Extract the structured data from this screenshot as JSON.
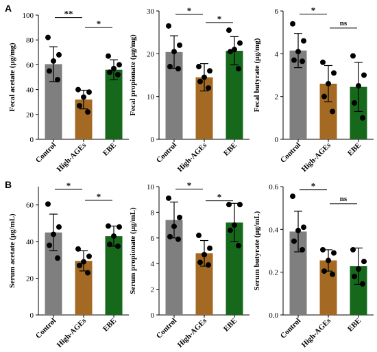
{
  "panel_labels": [
    "A",
    "B"
  ],
  "chart_data": [
    {
      "type": "bar",
      "panel": "A",
      "categories": [
        "Control",
        "High-AGEs",
        "EBE"
      ],
      "ylabel": "Fecal acetate (µg/mg)",
      "ylim": [
        0,
        100
      ],
      "yticks": [
        "0",
        "20",
        "40",
        "60",
        "80",
        "100"
      ],
      "values": [
        60.5,
        32.0,
        56.0
      ],
      "errors": [
        14.0,
        7.5,
        8.0
      ],
      "points": [
        [
          82,
          68,
          63,
          55,
          48
        ],
        [
          40,
          38,
          34,
          27,
          22
        ],
        [
          67,
          60,
          57,
          54,
          52
        ]
      ],
      "significance": [
        {
          "from": 0,
          "to": 1,
          "label": "**",
          "y": 98
        },
        {
          "from": 1,
          "to": 2,
          "label": "*",
          "y": 90
        }
      ]
    },
    {
      "type": "bar",
      "panel": "A",
      "categories": [
        "Control",
        "High-AGEs",
        "EBE"
      ],
      "ylabel": "Fecal propionate (µg/mg)",
      "ylim": [
        0,
        30
      ],
      "yticks": [
        "0",
        "10",
        "20",
        "30"
      ],
      "values": [
        20.4,
        14.5,
        20.7
      ],
      "errors": [
        3.8,
        3.2,
        3.3
      ],
      "points": [
        [
          26.5,
          22,
          20.5,
          17,
          16.5
        ],
        [
          17,
          16,
          14.5,
          13.5,
          12
        ],
        [
          25.5,
          22.5,
          21,
          20.5,
          16.5
        ]
      ],
      "significance": [
        {
          "from": 0,
          "to": 1,
          "label": "*",
          "y": 29.2
        },
        {
          "from": 1,
          "to": 2,
          "label": "*",
          "y": 27.3
        }
      ]
    },
    {
      "type": "bar",
      "panel": "A",
      "categories": [
        "Control",
        "High-AGEs",
        "EBE"
      ],
      "ylabel": "Fecal butyrate (µg/mg)",
      "ylim": [
        0,
        6
      ],
      "yticks": [
        "0",
        "2",
        "4",
        "6"
      ],
      "values": [
        4.15,
        2.6,
        2.45
      ],
      "errors": [
        0.8,
        0.85,
        1.15
      ],
      "points": [
        [
          5.4,
          4.6,
          4.1,
          3.7,
          3.65
        ],
        [
          3.6,
          3.1,
          2.6,
          2.0,
          1.3
        ],
        [
          3.9,
          3.0,
          2.5,
          1.7,
          1.0
        ]
      ],
      "significance": [
        {
          "from": 0,
          "to": 1,
          "label": "*",
          "y": 5.85
        },
        {
          "from": 1,
          "to": 2,
          "label": "ns",
          "y": 5.2
        }
      ]
    },
    {
      "type": "bar",
      "panel": "B",
      "categories": [
        "Control",
        "High-AGEs",
        "EBE"
      ],
      "ylabel": "Serum acetate (µg/mL)",
      "ylim": [
        0,
        70
      ],
      "yticks": [
        "0",
        "20",
        "40",
        "60"
      ],
      "values": [
        45.0,
        29.5,
        43.0
      ],
      "errors": [
        10.0,
        5.5,
        5.5
      ],
      "points": [
        [
          60.5,
          48,
          44,
          38,
          31
        ],
        [
          36,
          32,
          29,
          27,
          23
        ],
        [
          48.5,
          48,
          43,
          38.5,
          37.5
        ]
      ],
      "significance": [
        {
          "from": 0,
          "to": 1,
          "label": "*",
          "y": 68.5
        },
        {
          "from": 1,
          "to": 2,
          "label": "*",
          "y": 62.5
        }
      ]
    },
    {
      "type": "bar",
      "panel": "B",
      "categories": [
        "Control",
        "High-AGEs",
        "EBE"
      ],
      "ylabel": "Serum propionate (µg/mL)",
      "ylim": [
        0,
        10
      ],
      "yticks": [
        "0",
        "2",
        "4",
        "6",
        "8",
        "10"
      ],
      "values": [
        7.4,
        4.8,
        7.2
      ],
      "errors": [
        1.4,
        1.0,
        1.5
      ],
      "points": [
        [
          9.1,
          7.6,
          6.9,
          6.1,
          5.9
        ],
        [
          6.2,
          5.2,
          4.7,
          4.1,
          3.9
        ],
        [
          8.6,
          8.6,
          7.0,
          6.6,
          5.4
        ]
      ],
      "significance": [
        {
          "from": 0,
          "to": 1,
          "label": "*",
          "y": 9.8
        },
        {
          "from": 1,
          "to": 2,
          "label": "*",
          "y": 8.9
        }
      ]
    },
    {
      "type": "bar",
      "panel": "B",
      "categories": [
        "Control",
        "High-AGEs",
        "EBE"
      ],
      "ylabel": "Serum butyrate (µg/mL)",
      "ylim": [
        0,
        0.6
      ],
      "yticks": [
        "0.0",
        "0.2",
        "0.4",
        "0.6"
      ],
      "values": [
        0.39,
        0.255,
        0.228
      ],
      "errors": [
        0.095,
        0.05,
        0.085
      ],
      "points": [
        [
          0.555,
          0.41,
          0.395,
          0.345,
          0.305
        ],
        [
          0.305,
          0.29,
          0.255,
          0.205,
          0.19
        ],
        [
          0.305,
          0.25,
          0.215,
          0.18,
          0.145
        ]
      ],
      "significance": [
        {
          "from": 0,
          "to": 1,
          "label": "*",
          "y": 0.585
        },
        {
          "from": 1,
          "to": 2,
          "label": "ns",
          "y": 0.52
        }
      ]
    }
  ],
  "colors": {
    "Control": "#7f7f7f",
    "High-AGEs": "#a46a24",
    "EBE": "#16691b",
    "axis": "#000000",
    "point": "#000000"
  }
}
